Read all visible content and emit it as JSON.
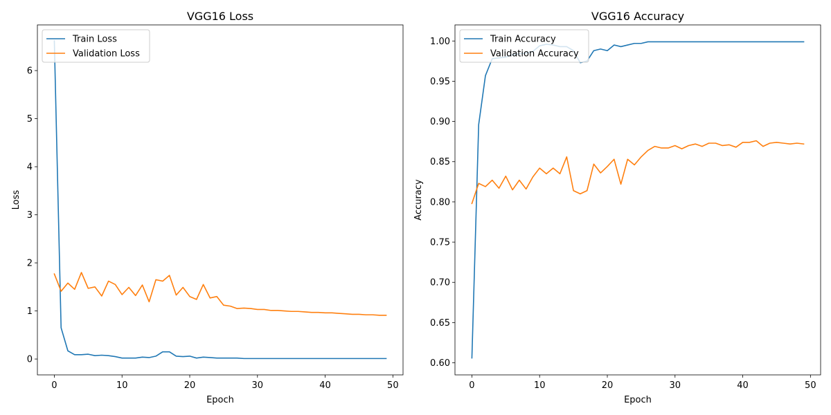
{
  "chart_data": [
    {
      "type": "line",
      "title": "VGG16 Loss",
      "xlabel": "Epoch",
      "ylabel": "Loss",
      "xlim": [
        -2.5,
        51.5
      ],
      "ylim": [
        -0.33,
        6.95
      ],
      "xticks": [
        0,
        10,
        20,
        30,
        40,
        50
      ],
      "yticks": [
        0,
        1,
        2,
        3,
        4,
        5,
        6
      ],
      "ytick_labels": [
        "0",
        "1",
        "2",
        "3",
        "4",
        "5",
        "6"
      ],
      "grid": false,
      "legend_position": "top-left",
      "x": [
        0,
        1,
        2,
        3,
        4,
        5,
        6,
        7,
        8,
        9,
        10,
        11,
        12,
        13,
        14,
        15,
        16,
        17,
        18,
        19,
        20,
        21,
        22,
        23,
        24,
        25,
        26,
        27,
        28,
        29,
        30,
        31,
        32,
        33,
        34,
        35,
        36,
        37,
        38,
        39,
        40,
        41,
        42,
        43,
        44,
        45,
        46,
        47,
        48,
        49
      ],
      "series": [
        {
          "name": "Train Loss",
          "color": "#1f77b4",
          "values": [
            6.62,
            0.65,
            0.17,
            0.09,
            0.09,
            0.1,
            0.07,
            0.08,
            0.07,
            0.05,
            0.02,
            0.02,
            0.02,
            0.04,
            0.03,
            0.06,
            0.15,
            0.15,
            0.06,
            0.05,
            0.06,
            0.02,
            0.04,
            0.03,
            0.02,
            0.02,
            0.02,
            0.02,
            0.01,
            0.01,
            0.01,
            0.01,
            0.01,
            0.01,
            0.01,
            0.01,
            0.01,
            0.01,
            0.01,
            0.01,
            0.01,
            0.01,
            0.01,
            0.01,
            0.01,
            0.01,
            0.01,
            0.01,
            0.01,
            0.01
          ]
        },
        {
          "name": "Validation Loss",
          "color": "#ff7f0e",
          "values": [
            1.77,
            1.41,
            1.58,
            1.45,
            1.8,
            1.47,
            1.5,
            1.31,
            1.62,
            1.55,
            1.34,
            1.49,
            1.32,
            1.54,
            1.19,
            1.65,
            1.62,
            1.74,
            1.33,
            1.49,
            1.3,
            1.24,
            1.55,
            1.27,
            1.3,
            1.12,
            1.1,
            1.05,
            1.06,
            1.05,
            1.03,
            1.03,
            1.01,
            1.01,
            1.0,
            0.99,
            0.99,
            0.98,
            0.97,
            0.97,
            0.96,
            0.96,
            0.95,
            0.94,
            0.93,
            0.93,
            0.92,
            0.92,
            0.91,
            0.91
          ]
        }
      ]
    },
    {
      "type": "line",
      "title": "VGG16 Accuracy",
      "xlabel": "Epoch",
      "ylabel": "Accuracy",
      "xlim": [
        -2.5,
        51.5
      ],
      "ylim": [
        0.585,
        1.02
      ],
      "xticks": [
        0,
        10,
        20,
        30,
        40,
        50
      ],
      "yticks": [
        0.6,
        0.65,
        0.7,
        0.75,
        0.8,
        0.85,
        0.9,
        0.95,
        1.0
      ],
      "ytick_labels": [
        "0.60",
        "0.65",
        "0.70",
        "0.75",
        "0.80",
        "0.85",
        "0.90",
        "0.95",
        "1.00"
      ],
      "grid": false,
      "legend_position": "top-left",
      "x": [
        0,
        1,
        2,
        3,
        4,
        5,
        6,
        7,
        8,
        9,
        10,
        11,
        12,
        13,
        14,
        15,
        16,
        17,
        18,
        19,
        20,
        21,
        22,
        23,
        24,
        25,
        26,
        27,
        28,
        29,
        30,
        31,
        32,
        33,
        34,
        35,
        36,
        37,
        38,
        39,
        40,
        41,
        42,
        43,
        44,
        45,
        46,
        47,
        48,
        49
      ],
      "series": [
        {
          "name": "Train Accuracy",
          "color": "#1f77b4",
          "values": [
            0.606,
            0.896,
            0.957,
            0.978,
            0.979,
            0.98,
            0.983,
            0.984,
            0.985,
            0.987,
            0.994,
            0.996,
            0.995,
            0.993,
            0.993,
            0.988,
            0.973,
            0.975,
            0.988,
            0.99,
            0.988,
            0.995,
            0.993,
            0.995,
            0.997,
            0.997,
            0.999,
            0.999,
            0.999,
            0.999,
            0.999,
            0.999,
            0.999,
            0.999,
            0.999,
            0.999,
            0.999,
            0.999,
            0.999,
            0.999,
            0.999,
            0.999,
            0.999,
            0.999,
            0.999,
            0.999,
            0.999,
            0.999,
            0.999,
            0.999
          ]
        },
        {
          "name": "Validation Accuracy",
          "color": "#ff7f0e",
          "values": [
            0.798,
            0.823,
            0.819,
            0.827,
            0.817,
            0.832,
            0.815,
            0.827,
            0.816,
            0.831,
            0.842,
            0.835,
            0.842,
            0.835,
            0.856,
            0.814,
            0.81,
            0.814,
            0.847,
            0.836,
            0.844,
            0.853,
            0.822,
            0.853,
            0.846,
            0.856,
            0.864,
            0.869,
            0.867,
            0.867,
            0.87,
            0.866,
            0.87,
            0.872,
            0.869,
            0.873,
            0.873,
            0.87,
            0.871,
            0.868,
            0.874,
            0.874,
            0.876,
            0.869,
            0.873,
            0.874,
            0.873,
            0.872,
            0.873,
            0.872
          ]
        }
      ]
    }
  ]
}
